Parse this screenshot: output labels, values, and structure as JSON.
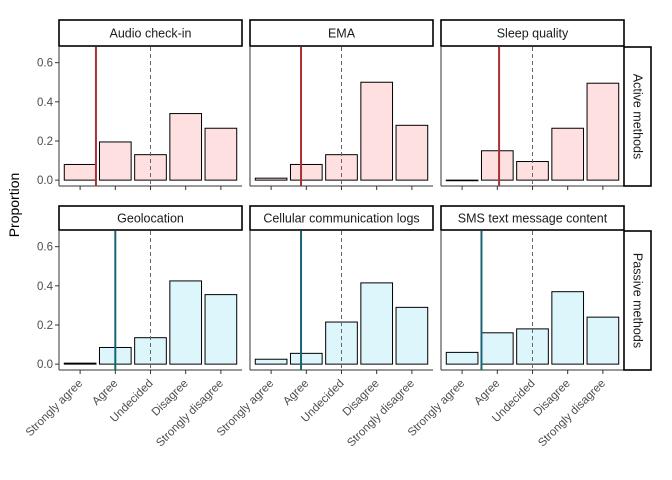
{
  "chart_data": {
    "type": "bar",
    "ylabel": "Proportion",
    "categories": [
      "Strongly agree",
      "Agree",
      "Undecided",
      "Disagree",
      "Strongly disagree"
    ],
    "yticks": [
      0.0,
      0.2,
      0.4,
      0.6
    ],
    "ytick_labels": [
      "0.0",
      "0.2",
      "0.4",
      "0.6"
    ],
    "ylim": [
      -0.03,
      0.68
    ],
    "dashed_reference_category": "Undecided",
    "grid": false,
    "rows": [
      {
        "label": "Active methods",
        "fill_color": "#FFE0E0",
        "line_color": "#A83232",
        "panels": [
          {
            "title": "Audio check-in",
            "values": [
              0.08,
              0.195,
              0.13,
              0.34,
              0.265
            ],
            "mean_position": 0.45
          },
          {
            "title": "EMA",
            "values": [
              0.01,
              0.08,
              0.13,
              0.5,
              0.28
            ],
            "mean_position": 0.85
          },
          {
            "title": "Sleep quality",
            "values": [
              0.0,
              0.15,
              0.095,
              0.265,
              0.495
            ],
            "mean_position": 1.05
          }
        ]
      },
      {
        "label": "Passive methods",
        "fill_color": "#DCF6FB",
        "line_color": "#1A6478",
        "panels": [
          {
            "title": "Geolocation",
            "values": [
              0.005,
              0.085,
              0.135,
              0.425,
              0.355
            ],
            "mean_position": 1.0
          },
          {
            "title": "Cellular communication logs",
            "values": [
              0.025,
              0.055,
              0.215,
              0.415,
              0.29
            ],
            "mean_position": 0.85
          },
          {
            "title": "SMS text message content",
            "values": [
              0.06,
              0.16,
              0.18,
              0.37,
              0.24
            ],
            "mean_position": 0.55
          }
        ]
      }
    ]
  }
}
